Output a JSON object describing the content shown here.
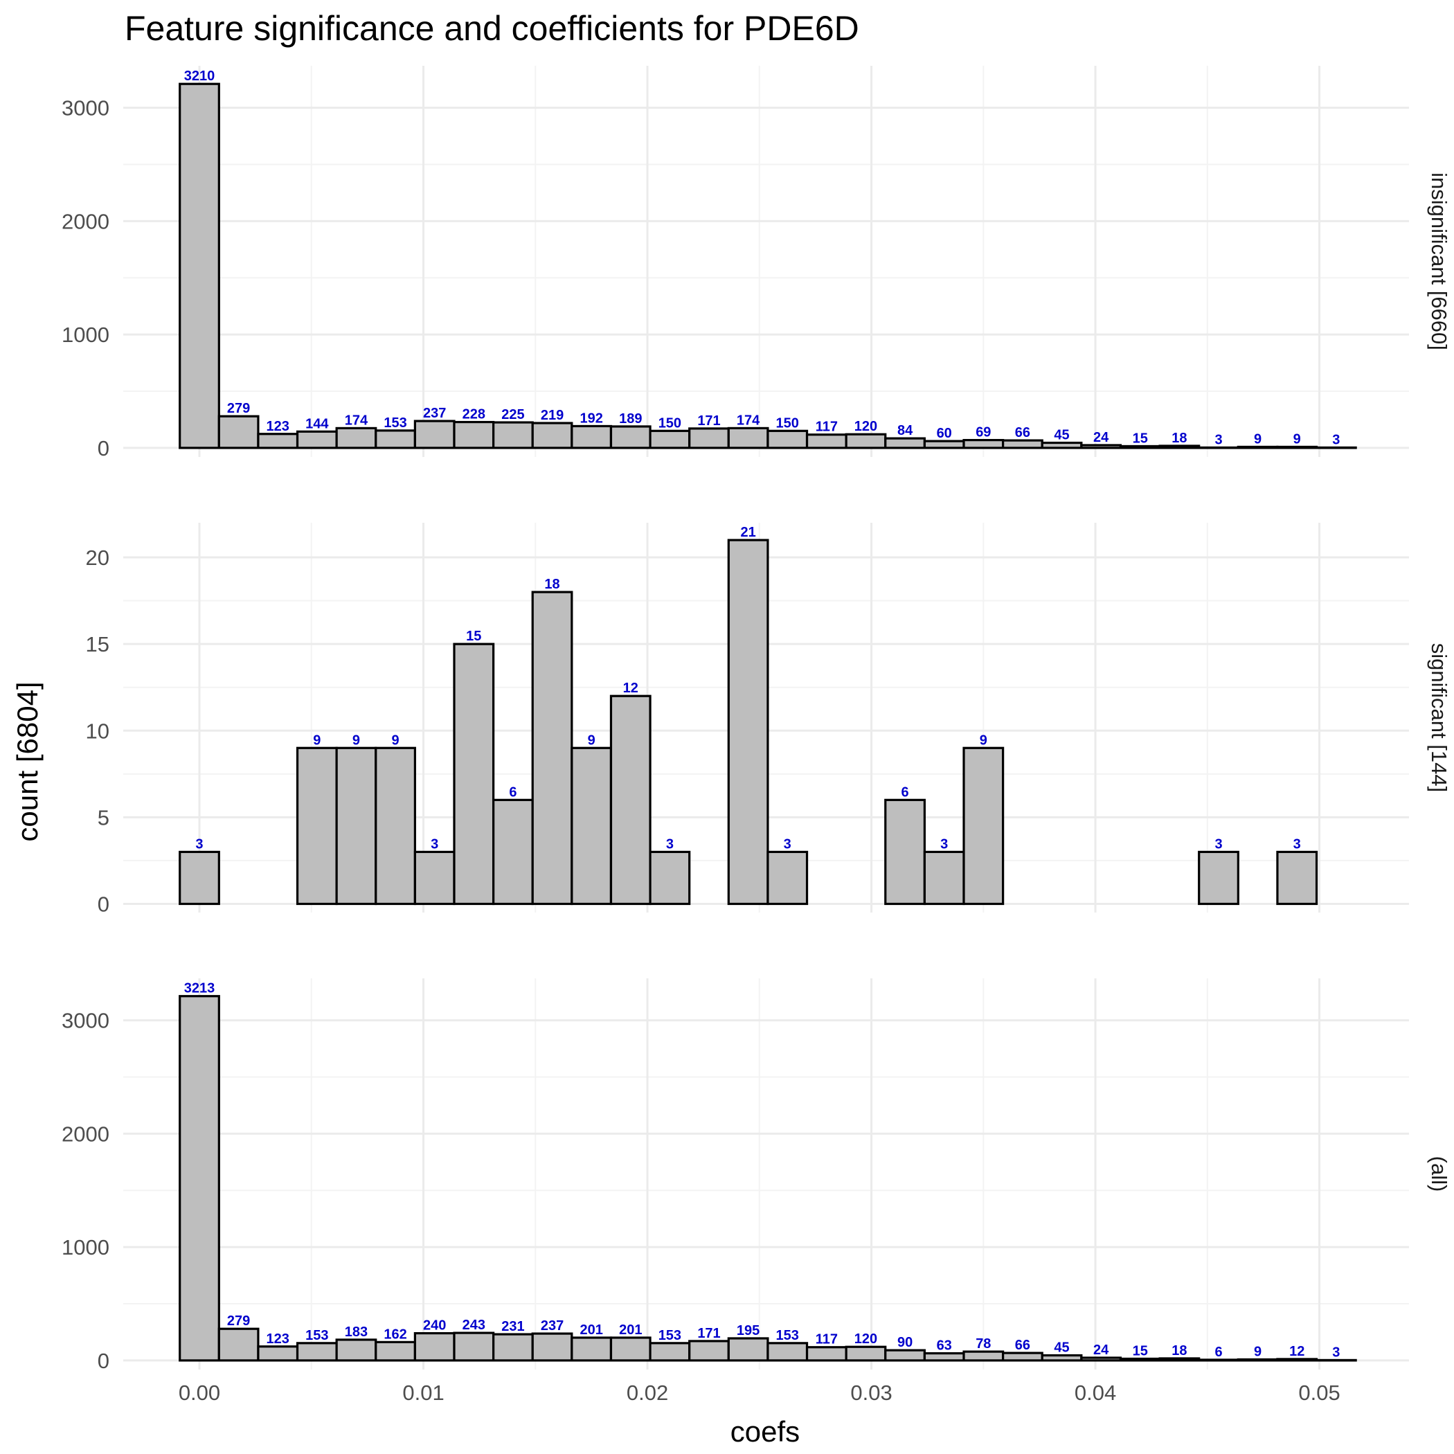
{
  "chart_data": {
    "type": "bar",
    "title": "Feature significance and coefficients for PDE6D",
    "xlabel": "coefs",
    "ylabel": "count [6804]",
    "bin_centers": [
      0.0,
      0.00175,
      0.0035,
      0.00525,
      0.007,
      0.00875,
      0.0105,
      0.01225,
      0.014,
      0.01575,
      0.0175,
      0.01925,
      0.021,
      0.02275,
      0.0245,
      0.02625,
      0.028,
      0.02975,
      0.0315,
      0.03325,
      0.035,
      0.03675,
      0.0385,
      0.04025,
      0.042,
      0.04375,
      0.0455,
      0.04725,
      0.049,
      0.05075
    ],
    "x_ticks": [
      "0.00",
      "0.01",
      "0.02",
      "0.03",
      "0.04",
      "0.05"
    ],
    "x_tick_values": [
      0.0,
      0.01,
      0.02,
      0.03,
      0.04,
      0.05
    ],
    "xlim": [
      -0.0034,
      0.054
    ],
    "grid": true,
    "panels": [
      {
        "strip_label": "insignificant [6660]",
        "y_ticks": [
          "0",
          "1000",
          "2000",
          "3000"
        ],
        "y_tick_values": [
          0,
          1000,
          2000,
          3000
        ],
        "ylim": [
          -80,
          3370
        ],
        "values": [
          3210,
          279,
          123,
          144,
          174,
          153,
          237,
          228,
          225,
          219,
          192,
          189,
          150,
          171,
          174,
          150,
          117,
          120,
          84,
          60,
          69,
          66,
          45,
          24,
          15,
          18,
          3,
          9,
          9,
          3
        ],
        "bar_labels": [
          "3210",
          "279",
          "123",
          "144",
          "174",
          "153",
          "237",
          "228",
          "225",
          "219",
          "192",
          "189",
          "150",
          "171",
          "174",
          "150",
          "117",
          "120",
          "84",
          "60",
          "69",
          "66",
          "45",
          "24",
          "15",
          "18",
          "3",
          "9",
          "9",
          "3"
        ]
      },
      {
        "strip_label": "significant [144]",
        "y_ticks": [
          "0",
          "5",
          "10",
          "15",
          "20"
        ],
        "y_tick_values": [
          0,
          5,
          10,
          15,
          20
        ],
        "ylim": [
          -0.5,
          22
        ],
        "values": [
          3,
          0,
          0,
          9,
          9,
          9,
          3,
          15,
          6,
          18,
          9,
          12,
          3,
          0,
          21,
          3,
          0,
          0,
          6,
          3,
          9,
          0,
          0,
          0,
          0,
          0,
          3,
          0,
          3,
          0
        ],
        "bar_labels": [
          "3",
          "",
          "",
          "9",
          "9",
          "9",
          "3",
          "15",
          "6",
          "18",
          "9",
          "12",
          "3",
          "",
          "21",
          "3",
          "",
          "",
          "6",
          "3",
          "9",
          "",
          "",
          "",
          "",
          "",
          "3",
          "",
          "3",
          ""
        ]
      },
      {
        "strip_label": "(all)",
        "y_ticks": [
          "0",
          "1000",
          "2000",
          "3000"
        ],
        "y_tick_values": [
          0,
          1000,
          2000,
          3000
        ],
        "ylim": [
          -80,
          3370
        ],
        "values": [
          3213,
          279,
          123,
          153,
          183,
          162,
          240,
          243,
          231,
          237,
          201,
          201,
          153,
          171,
          195,
          153,
          117,
          120,
          90,
          63,
          78,
          66,
          45,
          24,
          15,
          18,
          6,
          9,
          12,
          3
        ],
        "bar_labels": [
          "3213",
          "279",
          "123",
          "153",
          "183",
          "162",
          "240",
          "243",
          "231",
          "237",
          "201",
          "201",
          "153",
          "171",
          "195",
          "153",
          "117",
          "120",
          "90",
          "63",
          "78",
          "66",
          "45",
          "24",
          "15",
          "18",
          "6",
          "9",
          "12",
          "3"
        ]
      }
    ]
  }
}
